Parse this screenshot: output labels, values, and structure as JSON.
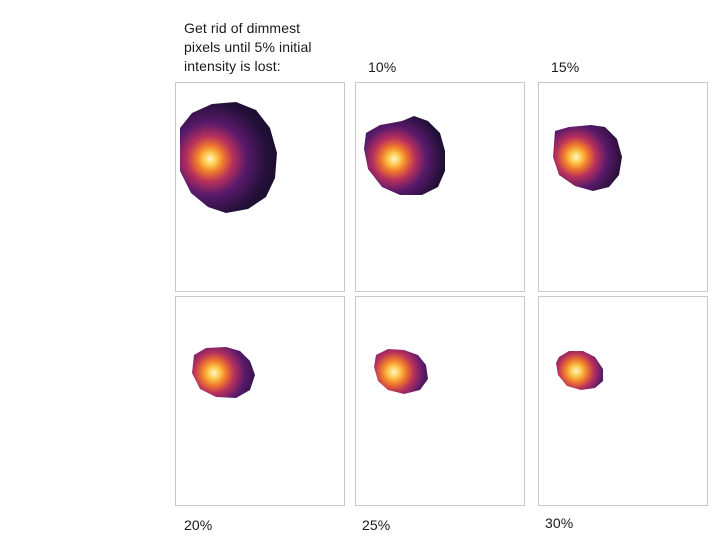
{
  "intro_text": "Get rid of dimmest\npixels until 5% initial\nintensity is lost:",
  "labels": {
    "p10": "10%",
    "p15": "15%",
    "p20": "20%",
    "p25": "25%",
    "p30": "30%"
  },
  "colors": {
    "background": "#ffffff",
    "panel_border": "#c9c9c9",
    "blob_outer": "#120a1c",
    "blob_mid": "#5a1a6b",
    "blob_inner": "#d0405a",
    "core_glow": "#f7a33a",
    "core_center": "#fff6c8"
  }
}
